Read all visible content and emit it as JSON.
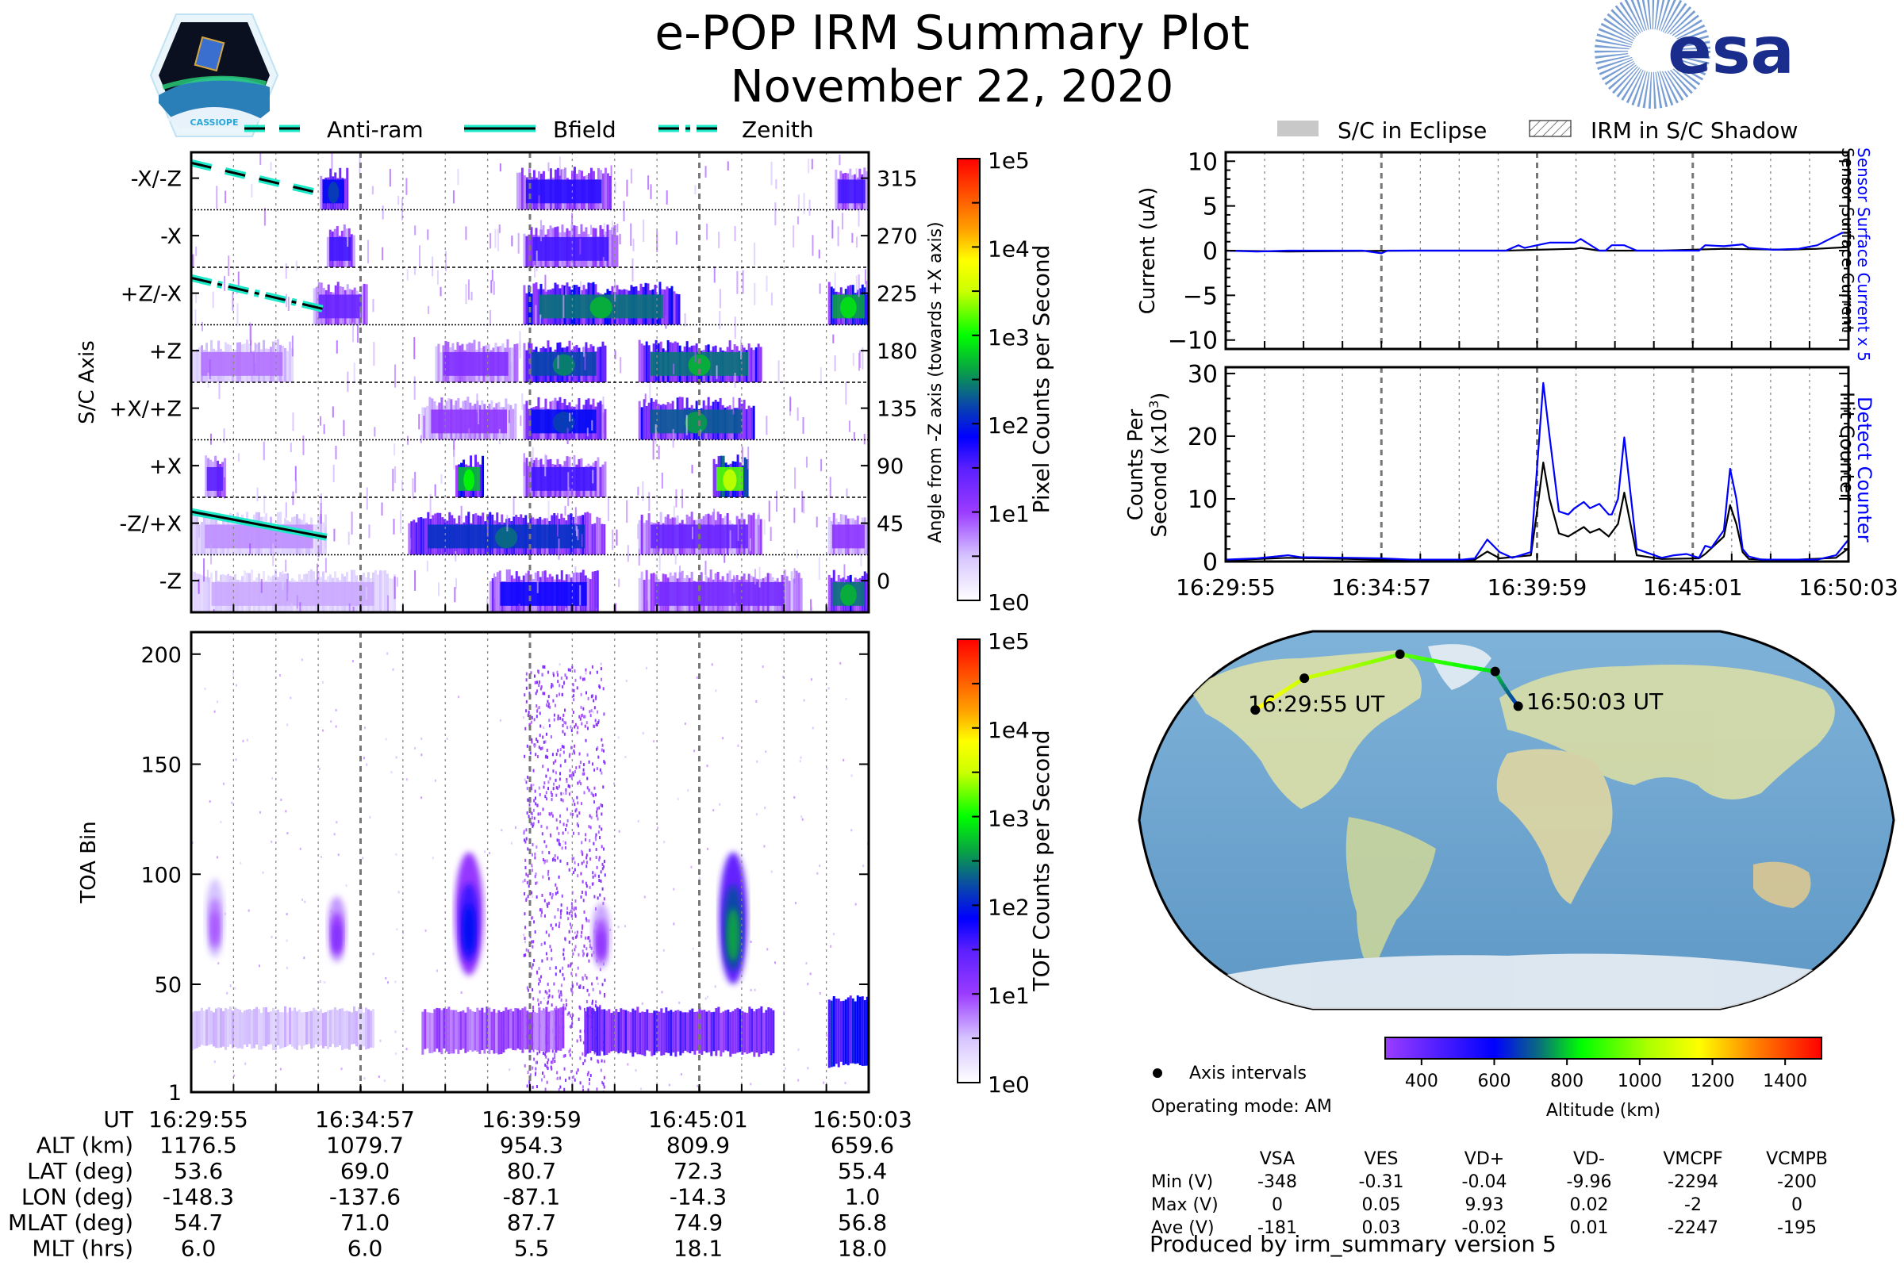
{
  "header": {
    "title": "e-POP IRM Summary Plot",
    "date": "November 22, 2020",
    "left_logo": "cassiope-mission-logo",
    "left_logo_text": "CASSIOPE",
    "right_logo": "esa-logo",
    "right_logo_text": "esa"
  },
  "colors": {
    "trajectory_line_edge": "#1de9c9",
    "trajectory_line_core": "#000000",
    "detect_counter": "#0000ff",
    "hit_counter": "#000000",
    "eclipse_patch": "#c8c8c8",
    "esa_blue": "#1a2d8c"
  },
  "chart_data": [
    {
      "id": "sc-axis-spectrogram",
      "type": "heatmap",
      "title": "",
      "legend": {
        "placement": "top",
        "entries": [
          {
            "label": "Anti-ram",
            "style": "dashed"
          },
          {
            "label": "Bfield",
            "style": "solid"
          },
          {
            "label": "Zenith",
            "style": "dashdot"
          }
        ]
      },
      "ylabel_left": "S/C Axis",
      "ylabel_right": "Angle from -Z axis (towards +X axis)",
      "y_categories": [
        "-X/-Z",
        "-X",
        "+Z/-X",
        "+Z",
        "+X/+Z",
        "+X",
        "-Z/+X",
        "-Z"
      ],
      "y_right_ticks": [
        315,
        270,
        225,
        180,
        135,
        90,
        45,
        0
      ],
      "x_time_range": [
        "16:29:55",
        "16:50:03"
      ],
      "x_intervals": 16,
      "major_gridline_intervals": [
        4,
        8,
        12
      ],
      "colorbar": {
        "label": "Pixel Counts per Second",
        "scale": "log",
        "ticks": [
          "1e0",
          "1e1",
          "1e2",
          "1e3",
          "1e4",
          "1e5"
        ],
        "range": [
          1,
          100000
        ]
      },
      "blobs": [
        {
          "row": "-X/-Z",
          "t0": 0.19,
          "t1": 0.23,
          "log_peak": 1.9
        },
        {
          "row": "-X/-Z",
          "t0": 0.48,
          "t1": 0.62,
          "log_peak": 1.7
        },
        {
          "row": "-X/-Z",
          "t0": 0.95,
          "t1": 1.0,
          "log_peak": 1.6
        },
        {
          "row": "-X",
          "t0": 0.2,
          "t1": 0.24,
          "log_peak": 1.6
        },
        {
          "row": "-X",
          "t0": 0.49,
          "t1": 0.63,
          "log_peak": 1.6
        },
        {
          "row": "+Z/-X",
          "t0": 0.18,
          "t1": 0.26,
          "log_peak": 1.4
        },
        {
          "row": "+Z/-X",
          "t0": 0.49,
          "t1": 0.72,
          "log_peak": 2.4
        },
        {
          "row": "+Z/-X",
          "t0": 0.94,
          "t1": 1.0,
          "log_peak": 2.6
        },
        {
          "row": "+Z",
          "t0": 0.0,
          "t1": 0.15,
          "log_peak": 0.8
        },
        {
          "row": "+Z",
          "t0": 0.36,
          "t1": 0.48,
          "log_peak": 1.2
        },
        {
          "row": "+Z",
          "t0": 0.49,
          "t1": 0.61,
          "log_peak": 2.2
        },
        {
          "row": "+Z",
          "t0": 0.66,
          "t1": 0.84,
          "log_peak": 2.4
        },
        {
          "row": "+X/+Z",
          "t0": 0.34,
          "t1": 0.48,
          "log_peak": 1.1
        },
        {
          "row": "+X/+Z",
          "t0": 0.49,
          "t1": 0.61,
          "log_peak": 1.9
        },
        {
          "row": "+X/+Z",
          "t0": 0.66,
          "t1": 0.83,
          "log_peak": 2.3
        },
        {
          "row": "+X",
          "t0": 0.02,
          "t1": 0.05,
          "log_peak": 1.5
        },
        {
          "row": "+X",
          "t0": 0.39,
          "t1": 0.43,
          "log_peak": 2.7
        },
        {
          "row": "+X",
          "t0": 0.49,
          "t1": 0.61,
          "log_peak": 1.6
        },
        {
          "row": "+X",
          "t0": 0.77,
          "t1": 0.82,
          "log_peak": 3.2
        },
        {
          "row": "-Z/+X",
          "t0": 0.0,
          "t1": 0.2,
          "log_peak": 0.7
        },
        {
          "row": "-Z/+X",
          "t0": 0.32,
          "t1": 0.61,
          "log_peak": 2.1
        },
        {
          "row": "-Z/+X",
          "t0": 0.66,
          "t1": 0.84,
          "log_peak": 1.4
        },
        {
          "row": "-Z/+X",
          "t0": 0.94,
          "t1": 1.0,
          "log_peak": 1.1
        },
        {
          "row": "-Z",
          "t0": 0.0,
          "t1": 0.3,
          "log_peak": 0.6
        },
        {
          "row": "-Z",
          "t0": 0.44,
          "t1": 0.6,
          "log_peak": 1.8
        },
        {
          "row": "-Z",
          "t0": 0.66,
          "t1": 0.9,
          "log_peak": 1.3
        },
        {
          "row": "-Z",
          "t0": 0.94,
          "t1": 1.0,
          "log_peak": 2.4
        }
      ],
      "direction_lines": [
        {
          "label": "Anti-ram",
          "style": "dashed",
          "t0": 0.0,
          "angle0": 327,
          "t1": 0.2,
          "angle1": 302
        },
        {
          "label": "Zenith",
          "style": "dashdot",
          "t0": 0.0,
          "angle0": 237,
          "t1": 0.2,
          "angle1": 212
        },
        {
          "label": "Bfield",
          "style": "solid",
          "t0": 0.0,
          "angle0": 54,
          "t1": 0.2,
          "angle1": 34
        }
      ]
    },
    {
      "id": "toa-spectrogram",
      "type": "heatmap",
      "ylabel": "TOA Bin",
      "yticks": [
        1,
        50,
        100,
        150,
        200
      ],
      "ylim": [
        1,
        210
      ],
      "x_time_range": [
        "16:29:55",
        "16:50:03"
      ],
      "colorbar": {
        "label": "TOF Counts per Second",
        "scale": "log",
        "ticks": [
          "1e0",
          "1e1",
          "1e2",
          "1e3",
          "1e4",
          "1e5"
        ],
        "range": [
          1,
          100000
        ]
      },
      "blobs": [
        {
          "t": 0.035,
          "bin_center": 80,
          "bin_halfwidth": 18,
          "log_peak": 0.9
        },
        {
          "t": 0.215,
          "bin_center": 75,
          "bin_halfwidth": 15,
          "log_peak": 1.2
        },
        {
          "t": 0.41,
          "bin_center": 82,
          "bin_halfwidth": 28,
          "log_peak": 1.9
        },
        {
          "t": 0.605,
          "bin_center": 72,
          "bin_halfwidth": 15,
          "log_peak": 1.1
        },
        {
          "t": 0.8,
          "bin_center": 80,
          "bin_halfwidth": 30,
          "log_peak": 2.6
        }
      ],
      "bands": [
        {
          "t0": 0.0,
          "t1": 0.27,
          "bin_low": 20,
          "bin_high": 40,
          "log_peak": 0.6
        },
        {
          "t0": 0.34,
          "t1": 0.55,
          "bin_low": 18,
          "bin_high": 40,
          "log_peak": 1.2
        },
        {
          "t0": 0.58,
          "t1": 0.86,
          "bin_low": 17,
          "bin_high": 40,
          "log_peak": 1.7
        },
        {
          "t0": 0.94,
          "t1": 1.0,
          "bin_low": 12,
          "bin_high": 45,
          "log_peak": 2.3
        }
      ],
      "noise_column": {
        "t0": 0.49,
        "t1": 0.61,
        "bin_high": 195,
        "log_peak": 0.5
      }
    },
    {
      "id": "sensor-current",
      "type": "line",
      "ylabel": "Current (uA)",
      "ylim": [
        -11,
        11
      ],
      "yticks": [
        -10,
        -5,
        0,
        5,
        10
      ],
      "legend": {
        "placement": "top",
        "entries": [
          {
            "label": "S/C in Eclipse",
            "style": "gray-patch"
          },
          {
            "label": "IRM in S/C Shadow",
            "style": "hatched-patch"
          }
        ]
      },
      "series": [
        {
          "name": "Sensor Surface Current x 5",
          "color": "#0000ff",
          "x": [
            0,
            0.05,
            0.1,
            0.16,
            0.22,
            0.25,
            0.26,
            0.3,
            0.4,
            0.45,
            0.47,
            0.48,
            0.5,
            0.52,
            0.54,
            0.56,
            0.57,
            0.6,
            0.61,
            0.62,
            0.64,
            0.66,
            0.7,
            0.74,
            0.76,
            0.77,
            0.8,
            0.83,
            0.84,
            0.86,
            0.88,
            0.92,
            0.95,
            0.97,
            0.99,
            1.0
          ],
          "y": [
            0,
            -0.1,
            0,
            0,
            0,
            -0.3,
            0,
            0,
            0,
            0,
            0.6,
            0.3,
            0.6,
            0.9,
            0.9,
            0.9,
            1.3,
            0,
            0,
            0.6,
            0.6,
            0,
            0,
            0,
            0,
            0.6,
            0.5,
            0.7,
            0.3,
            0.2,
            0.1,
            0.2,
            0.6,
            1.3,
            2.0,
            2.0
          ]
        },
        {
          "name": "Sensor Surface Current",
          "color": "#000000",
          "x": [
            0,
            0.1,
            0.3,
            0.45,
            0.5,
            0.56,
            0.57,
            0.6,
            0.7,
            0.8,
            0.9,
            0.95,
            1.0
          ],
          "y": [
            0,
            -0.1,
            0,
            0,
            0.1,
            0.2,
            0.3,
            0,
            0,
            0.2,
            0.1,
            0.2,
            0.4
          ]
        }
      ],
      "right_labels": [
        {
          "text": "Sensor Surface Current x 5",
          "color": "#0000ff"
        },
        {
          "text": "Sensor Surface Current",
          "color": "#000000"
        }
      ]
    },
    {
      "id": "counter-rates",
      "type": "line",
      "ylabel_line1": "Counts Per",
      "ylabel_line2": "Second (x10",
      "ylabel_sup": "3",
      "ylabel_close": ")",
      "ylim": [
        0,
        31
      ],
      "yticks": [
        0,
        10,
        20,
        30
      ],
      "xticks": [
        "16:29:55",
        "16:34:57",
        "16:39:59",
        "16:45:01",
        "16:50:03"
      ],
      "series": [
        {
          "name": "Detect Counter",
          "color": "#0000ff",
          "x": [
            0,
            0.05,
            0.1,
            0.12,
            0.2,
            0.25,
            0.3,
            0.38,
            0.4,
            0.42,
            0.44,
            0.46,
            0.49,
            0.5,
            0.51,
            0.52,
            0.535,
            0.55,
            0.56,
            0.575,
            0.585,
            0.6,
            0.615,
            0.62,
            0.63,
            0.64,
            0.66,
            0.7,
            0.72,
            0.74,
            0.76,
            0.77,
            0.78,
            0.8,
            0.805,
            0.81,
            0.82,
            0.83,
            0.84,
            0.86,
            0.9,
            0.95,
            0.98,
            1.0
          ],
          "y": [
            0.3,
            0.5,
            1.0,
            0.7,
            0.6,
            0.5,
            0.3,
            0.3,
            0.5,
            3.5,
            1.5,
            0.6,
            1.5,
            15,
            28.5,
            20,
            8,
            7.5,
            8.5,
            9.5,
            8.5,
            9.2,
            7.5,
            7.5,
            10,
            19.8,
            2,
            0.6,
            1.0,
            1.2,
            0.6,
            2.5,
            2.2,
            5,
            10,
            14.8,
            10,
            2,
            0.8,
            0.3,
            0.3,
            0.3,
            1.0,
            3.5
          ]
        },
        {
          "name": "Hit Counter",
          "color": "#000000",
          "x": [
            0,
            0.1,
            0.2,
            0.3,
            0.38,
            0.4,
            0.42,
            0.44,
            0.49,
            0.5,
            0.51,
            0.52,
            0.535,
            0.55,
            0.56,
            0.575,
            0.585,
            0.6,
            0.615,
            0.63,
            0.64,
            0.66,
            0.7,
            0.76,
            0.77,
            0.8,
            0.81,
            0.82,
            0.83,
            0.84,
            0.9,
            0.98,
            1.0
          ],
          "y": [
            0.2,
            0.6,
            0.4,
            0.2,
            0.2,
            0.3,
            1.6,
            0.5,
            1,
            8,
            15.8,
            10,
            4.5,
            4,
            4.6,
            5.5,
            4.6,
            5.2,
            4,
            6,
            11,
            1,
            0.4,
            0.5,
            1.2,
            4,
            9,
            6,
            1.5,
            0.4,
            0.2,
            0.6,
            2.1
          ]
        }
      ],
      "right_labels": [
        {
          "text": "Detect Counter",
          "color": "#0000ff"
        },
        {
          "text": "Hit Counter",
          "color": "#000000"
        }
      ]
    },
    {
      "id": "orbit-map",
      "type": "scatter",
      "title": "",
      "projection": "Robinson",
      "track": [
        {
          "time": "16:29:55",
          "lat": 53.6,
          "lon": -148.3,
          "alt": 1176.5
        },
        {
          "time": "16:34:57",
          "lat": 69.0,
          "lon": -137.6,
          "alt": 1079.7
        },
        {
          "time": "16:39:59",
          "lat": 80.7,
          "lon": -87.1,
          "alt": 954.3
        },
        {
          "time": "16:45:01",
          "lat": 72.3,
          "lon": -14.3,
          "alt": 809.9
        },
        {
          "time": "16:50:03",
          "lat": 55.4,
          "lon": 1.0,
          "alt": 659.6
        }
      ],
      "labels": [
        "16:29:55 UT",
        "16:50:03 UT"
      ],
      "legend_marker_label": "Axis intervals",
      "colorbar": {
        "label": "Altitude (km)",
        "ticks": [
          400,
          600,
          800,
          1000,
          1200,
          1400
        ],
        "range": [
          300,
          1500
        ]
      }
    }
  ],
  "ephemeris_table": {
    "row_labels": [
      "UT",
      "ALT (km)",
      "LAT (deg)",
      "LON (deg)",
      "MLAT (deg)",
      "MLT (hrs)"
    ],
    "columns": [
      [
        "16:29:55",
        "1176.5",
        "53.6",
        "-148.3",
        "54.7",
        "6.0"
      ],
      [
        "16:34:57",
        "1079.7",
        "69.0",
        "-137.6",
        "71.0",
        "6.0"
      ],
      [
        "16:39:59",
        "954.3",
        "80.7",
        "-87.1",
        "87.7",
        "5.5"
      ],
      [
        "16:45:01",
        "809.9",
        "72.3",
        "-14.3",
        "74.9",
        "18.1"
      ],
      [
        "16:50:03",
        "659.6",
        "55.4",
        "1.0",
        "56.8",
        "18.0"
      ]
    ]
  },
  "operating_mode": "Operating mode: AM",
  "voltage_table": {
    "headers": [
      "VSA",
      "VES",
      "VD+",
      "VD-",
      "VMCPF",
      "VCMPB"
    ],
    "rows": [
      {
        "label": "Min (V)",
        "values": [
          "-348",
          "-0.31",
          "-0.04",
          "-9.96",
          "-2294",
          "-200"
        ]
      },
      {
        "label": "Max (V)",
        "values": [
          "0",
          "0.05",
          "9.93",
          "0.02",
          "-2",
          "0"
        ]
      },
      {
        "label": "Ave (V)",
        "values": [
          "-181",
          "0.03",
          "-0.02",
          "0.01",
          "-2247",
          "-195"
        ]
      }
    ]
  },
  "footer": "Produced by irm_summary version 5"
}
